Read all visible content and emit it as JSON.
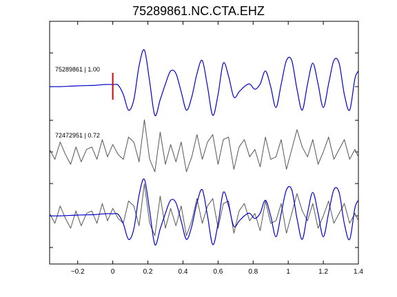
{
  "title": "75289861.NC.CTA.EHZ",
  "colors": {
    "primary": "#0000cc",
    "secondary": "#555555",
    "pick": "#dd0000",
    "axis": "#000000"
  },
  "chart_data": {
    "type": "line",
    "title": "75289861.NC.CTA.EHZ",
    "xlabel": "",
    "ylabel": "",
    "xlim": [
      -0.36,
      1.4
    ],
    "xticks": [
      -0.2,
      0,
      0.2,
      0.4,
      0.6,
      0.8,
      1,
      1.2,
      1.4
    ],
    "xtick_labels": [
      "−0.2",
      "0",
      "0.2",
      "0.4",
      "0.6",
      "0.8",
      "1",
      "1.2",
      "1.4"
    ],
    "pick_time": 0,
    "series": [
      {
        "name": "75289861 | 1.00",
        "label": "75289861 | 1.00",
        "color": "#0000cc",
        "x": [
          -0.36,
          -0.3,
          -0.2,
          -0.1,
          -0.05,
          0,
          0.03,
          0.06,
          0.09,
          0.12,
          0.15,
          0.18,
          0.21,
          0.24,
          0.27,
          0.3,
          0.33,
          0.36,
          0.39,
          0.42,
          0.45,
          0.48,
          0.51,
          0.54,
          0.57,
          0.6,
          0.63,
          0.66,
          0.69,
          0.72,
          0.75,
          0.78,
          0.81,
          0.84,
          0.87,
          0.9,
          0.93,
          0.96,
          0.99,
          1.02,
          1.05,
          1.08,
          1.11,
          1.14,
          1.17,
          1.2,
          1.23,
          1.26,
          1.29,
          1.32,
          1.35,
          1.38,
          1.4
        ],
        "y": [
          0,
          0,
          0.03,
          0.05,
          0.08,
          0.08,
          0.06,
          -0.3,
          -0.9,
          -0.5,
          0.8,
          1.4,
          0.2,
          -1.1,
          -0.5,
          0.1,
          0.6,
          0.5,
          -0.2,
          -0.9,
          -0.4,
          0.5,
          1.0,
          0.0,
          -1.1,
          -0.3,
          0.9,
          0.4,
          -0.4,
          -0.2,
          0.0,
          0.1,
          -0.1,
          0.1,
          0.6,
          0.0,
          -0.8,
          0.1,
          1.0,
          1.0,
          -0.1,
          -0.9,
          0.1,
          0.9,
          0.1,
          -0.8,
          0.1,
          1.0,
          0.9,
          -0.3,
          -0.9,
          0.3,
          0.6
        ]
      },
      {
        "name": "72472951 | 0.72",
        "label": "72472951 | 0.72",
        "color": "#555555",
        "x": [
          -0.36,
          -0.33,
          -0.3,
          -0.27,
          -0.24,
          -0.21,
          -0.18,
          -0.15,
          -0.12,
          -0.09,
          -0.06,
          -0.03,
          0,
          0.03,
          0.06,
          0.09,
          0.12,
          0.15,
          0.18,
          0.21,
          0.24,
          0.27,
          0.3,
          0.33,
          0.36,
          0.39,
          0.42,
          0.45,
          0.48,
          0.51,
          0.54,
          0.57,
          0.6,
          0.63,
          0.66,
          0.69,
          0.72,
          0.75,
          0.78,
          0.81,
          0.84,
          0.87,
          0.9,
          0.93,
          0.96,
          0.99,
          1.02,
          1.05,
          1.08,
          1.11,
          1.14,
          1.17,
          1.2,
          1.23,
          1.26,
          1.29,
          1.32,
          1.35,
          1.38,
          1.4
        ],
        "y": [
          0.1,
          -0.3,
          0.4,
          -0.1,
          -0.5,
          0.2,
          -0.4,
          0.1,
          0.2,
          -0.3,
          0.5,
          -0.2,
          0.3,
          -0.1,
          -0.3,
          0.6,
          0.4,
          -0.4,
          1.3,
          -0.3,
          -0.8,
          0.8,
          -0.5,
          0.3,
          -0.4,
          0.4,
          -0.8,
          -0.2,
          0.7,
          -0.3,
          0.4,
          0.7,
          -0.5,
          0.5,
          0.6,
          -0.7,
          0.2,
          0.5,
          -0.2,
          0.1,
          -0.6,
          0.6,
          -0.3,
          -0.2,
          0.5,
          -0.7,
          0.1,
          0.9,
          0.2,
          -0.2,
          0.5,
          -0.5,
          0.0,
          0.6,
          -0.3,
          0.1,
          0.5,
          -0.3,
          0.1,
          -0.2
        ]
      }
    ]
  }
}
